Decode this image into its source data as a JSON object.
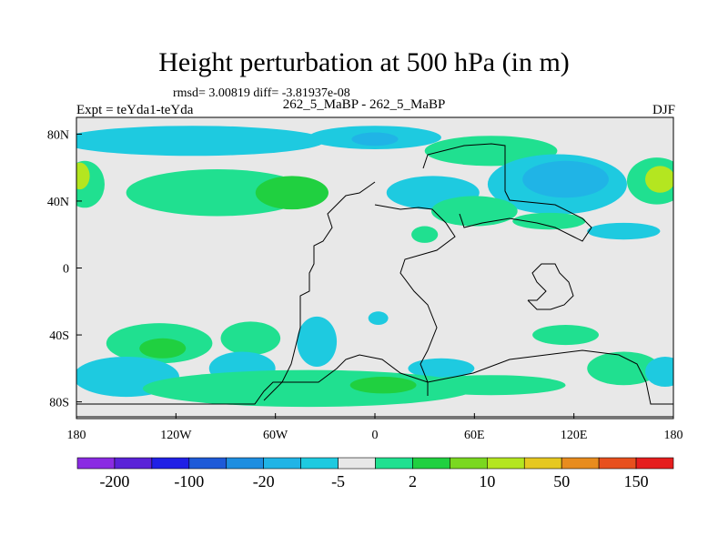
{
  "chart_data": {
    "type": "heatmap",
    "title": "Height perturbation at 500 hPa (in m)",
    "stats_text": "rmsd= 3.00819 diff= -3.81937e-08",
    "subtitle": "262_5_MaBP - 262_5_MaBP",
    "left_label": "Expt = teYda1-teYda",
    "right_label": "DJF",
    "x_range": [
      -180,
      180
    ],
    "y_range": [
      -90,
      90
    ],
    "x_ticks": [
      {
        "value": -180,
        "label": "180"
      },
      {
        "value": -120,
        "label": "120W"
      },
      {
        "value": -60,
        "label": "60W"
      },
      {
        "value": 0,
        "label": "0"
      },
      {
        "value": 60,
        "label": "60E"
      },
      {
        "value": 120,
        "label": "120E"
      },
      {
        "value": 180,
        "label": "180"
      }
    ],
    "y_ticks": [
      {
        "value": 80,
        "label": "80N"
      },
      {
        "value": 40,
        "label": "40N"
      },
      {
        "value": 0,
        "label": "0"
      },
      {
        "value": -40,
        "label": "40S"
      },
      {
        "value": -80,
        "label": "80S"
      }
    ],
    "colorbar": {
      "colors": [
        "#8a2be2",
        "#5a22d8",
        "#2020e6",
        "#1e5ad8",
        "#1e8ee0",
        "#20b4e6",
        "#1ecae0",
        "#e8e8e8",
        "#20e090",
        "#20d040",
        "#7ad820",
        "#b4e620",
        "#e6c820",
        "#e88c1e",
        "#e8501e",
        "#e61e1e"
      ],
      "labels": [
        {
          "after_box": 1,
          "text": "-200"
        },
        {
          "after_box": 3,
          "text": "-100"
        },
        {
          "after_box": 5,
          "text": "-20"
        },
        {
          "after_box": 7,
          "text": "-5"
        },
        {
          "after_box": 9,
          "text": "2"
        },
        {
          "after_box": 11,
          "text": "10"
        },
        {
          "after_box": 13,
          "text": "50"
        },
        {
          "after_box": 15,
          "text": "150"
        }
      ]
    },
    "regions": [
      {
        "lon": -175,
        "lat": 50,
        "rx": 12,
        "ry": 14,
        "level": "pos_low"
      },
      {
        "lon": -178,
        "lat": 55,
        "rx": 6,
        "ry": 8,
        "level": "pos_high"
      },
      {
        "lon": 170,
        "lat": 52,
        "rx": 18,
        "ry": 14,
        "level": "pos_low"
      },
      {
        "lon": 172,
        "lat": 53,
        "rx": 9,
        "ry": 8,
        "level": "pos_high"
      },
      {
        "lon": -95,
        "lat": 45,
        "rx": 55,
        "ry": 14,
        "level": "pos_low"
      },
      {
        "lon": -50,
        "lat": 45,
        "rx": 22,
        "ry": 10,
        "level": "pos_mid"
      },
      {
        "lon": -110,
        "lat": 76,
        "rx": 80,
        "ry": 9,
        "level": "neg_low"
      },
      {
        "lon": 0,
        "lat": 78,
        "rx": 40,
        "ry": 7,
        "level": "neg_low"
      },
      {
        "lon": 0,
        "lat": 77,
        "rx": 14,
        "ry": 4,
        "level": "neg_mid"
      },
      {
        "lon": 70,
        "lat": 70,
        "rx": 40,
        "ry": 9,
        "level": "pos_low"
      },
      {
        "lon": 110,
        "lat": 50,
        "rx": 42,
        "ry": 18,
        "level": "neg_low"
      },
      {
        "lon": 115,
        "lat": 53,
        "rx": 26,
        "ry": 11,
        "level": "neg_mid"
      },
      {
        "lon": 35,
        "lat": 45,
        "rx": 28,
        "ry": 10,
        "level": "neg_low"
      },
      {
        "lon": 60,
        "lat": 34,
        "rx": 26,
        "ry": 9,
        "level": "pos_low"
      },
      {
        "lon": 105,
        "lat": 28,
        "rx": 22,
        "ry": 5,
        "level": "pos_low"
      },
      {
        "lon": 150,
        "lat": 22,
        "rx": 22,
        "ry": 5,
        "level": "neg_low"
      },
      {
        "lon": 30,
        "lat": 20,
        "rx": 8,
        "ry": 5,
        "level": "pos_low"
      },
      {
        "lon": -130,
        "lat": -45,
        "rx": 32,
        "ry": 12,
        "level": "pos_low"
      },
      {
        "lon": -128,
        "lat": -48,
        "rx": 14,
        "ry": 6,
        "level": "pos_mid"
      },
      {
        "lon": -75,
        "lat": -42,
        "rx": 18,
        "ry": 10,
        "level": "pos_low"
      },
      {
        "lon": -35,
        "lat": -44,
        "rx": 12,
        "ry": 15,
        "level": "neg_low"
      },
      {
        "lon": -80,
        "lat": -60,
        "rx": 20,
        "ry": 10,
        "level": "neg_low"
      },
      {
        "lon": -150,
        "lat": -65,
        "rx": 32,
        "ry": 12,
        "level": "neg_low"
      },
      {
        "lon": 2,
        "lat": -30,
        "rx": 6,
        "ry": 4,
        "level": "neg_low"
      },
      {
        "lon": 40,
        "lat": -60,
        "rx": 20,
        "ry": 6,
        "level": "neg_low"
      },
      {
        "lon": 115,
        "lat": -40,
        "rx": 20,
        "ry": 6,
        "level": "pos_low"
      },
      {
        "lon": 150,
        "lat": -60,
        "rx": 22,
        "ry": 10,
        "level": "pos_low"
      },
      {
        "lon": 175,
        "lat": -62,
        "rx": 12,
        "ry": 9,
        "level": "neg_low"
      },
      {
        "lon": -40,
        "lat": -72,
        "rx": 100,
        "ry": 11,
        "level": "pos_low"
      },
      {
        "lon": 70,
        "lat": -70,
        "rx": 45,
        "ry": 6,
        "level": "pos_low"
      },
      {
        "lon": 5,
        "lat": -70,
        "rx": 20,
        "ry": 5,
        "level": "pos_mid"
      }
    ]
  },
  "level_colors": {
    "pos_low": "#20e090",
    "pos_mid": "#20d040",
    "pos_high": "#b4e620",
    "neg_low": "#1ecae0",
    "neg_mid": "#20b4e6",
    "background": "#e8e8e8",
    "land_outline": "#000000"
  }
}
